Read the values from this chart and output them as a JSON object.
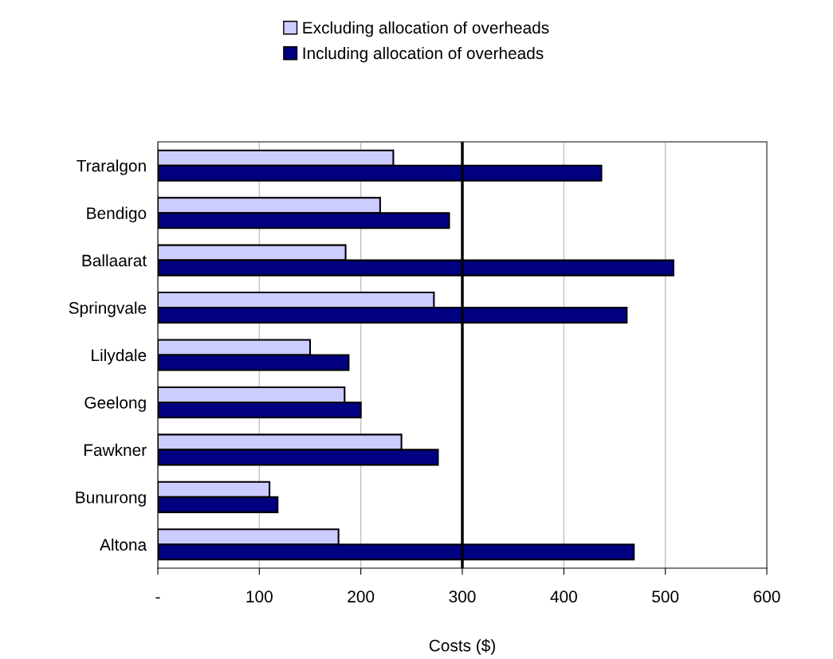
{
  "chart_data": {
    "type": "bar",
    "orientation": "horizontal",
    "xlabel": "Costs ($)",
    "categories": [
      "Traralgon",
      "Bendigo",
      "Ballaarat",
      "Springvale",
      "Lilydale",
      "Geelong",
      "Fawkner",
      "Bunurong",
      "Altona"
    ],
    "series": [
      {
        "name": "Excluding allocation of overheads",
        "color": "#ccccff",
        "values": [
          232,
          219,
          185,
          272,
          150,
          184,
          240,
          110,
          178
        ]
      },
      {
        "name": "Including allocation of overheads",
        "color": "#000080",
        "values": [
          437,
          287,
          508,
          462,
          188,
          200,
          276,
          118,
          469
        ]
      }
    ],
    "xlim": [
      0,
      600
    ],
    "xticks": [
      {
        "value": 0,
        "label": "-"
      },
      100,
      200,
      300,
      400,
      500,
      600
    ],
    "ref_lines": [
      {
        "axis": "x",
        "value": 300,
        "color": "#000000"
      }
    ],
    "grid": "x",
    "legend": "top"
  }
}
